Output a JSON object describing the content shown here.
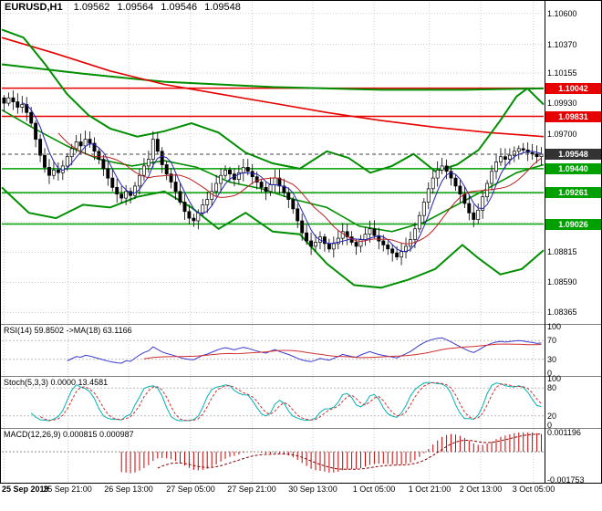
{
  "header": {
    "symbol": "EURUSD,H1",
    "open": "1.09562",
    "high": "1.09564",
    "low": "1.09546",
    "close": "1.09548"
  },
  "colors": {
    "background": "#ffffff",
    "candle_up": "#ffffff",
    "candle_down": "#000000",
    "candle_outline": "#000000",
    "band_green": "#008f00",
    "level_green": "#00a000",
    "level_red": "#e60000",
    "ma_red": "#e60000",
    "ma_green": "#008f00",
    "ma_fast_blue": "#2222bb",
    "ma_slow_red": "#bb2222",
    "rsi_line": "#3a3ad0",
    "rsi_ma": "#d03030",
    "stoch_k": "#00b3b3",
    "stoch_d": "#d03030",
    "macd": "#cc0000",
    "macd_signal": "#880000",
    "grid": "#cfcfcf",
    "current_badge": "#333333"
  },
  "price_axis": {
    "labels": [
      {
        "p": 1.106,
        "text": "1.10600"
      },
      {
        "p": 1.1037,
        "text": "1.10370"
      },
      {
        "p": 1.10155,
        "text": "1.10155"
      },
      {
        "p": 1.0993,
        "text": "1.09930"
      },
      {
        "p": 1.097,
        "text": "1.09700"
      },
      {
        "p": 1.08815,
        "text": "1.08815"
      },
      {
        "p": 1.0859,
        "text": "1.08590"
      },
      {
        "p": 1.08365,
        "text": "1.08365"
      }
    ],
    "gridlines": [
      1.106,
      1.1037,
      1.10155,
      1.0993,
      1.097,
      1.09475,
      1.0925,
      1.0904,
      1.08815,
      1.0859,
      1.08365
    ],
    "badges": [
      {
        "p": 1.10042,
        "text": "1.10042",
        "type": "red"
      },
      {
        "p": 1.09831,
        "text": "1.09831",
        "type": "red"
      },
      {
        "p": 1.09548,
        "text": "1.09548",
        "type": "current"
      },
      {
        "p": 1.0944,
        "text": "1.09440",
        "type": "green"
      },
      {
        "p": 1.09261,
        "text": "1.09261",
        "type": "green"
      },
      {
        "p": 1.09026,
        "text": "1.09026",
        "type": "green"
      }
    ]
  },
  "panels": {
    "rsi": {
      "label": "RSI(14) 59.8502 ->MA(18) 63.1166",
      "range": [
        0,
        100
      ],
      "guides": [
        70,
        30
      ],
      "axis_labels": [
        {
          "v": 100,
          "text": "100"
        },
        {
          "v": 70,
          "text": "70"
        },
        {
          "v": 30,
          "text": "30"
        },
        {
          "v": 0,
          "text": "0"
        }
      ]
    },
    "stoch": {
      "label": "Stoch(5,3,3) 0.0000 13.4581",
      "range": [
        0,
        100
      ],
      "guides": [
        80,
        20
      ],
      "axis_labels": [
        {
          "v": 100,
          "text": "100"
        },
        {
          "v": 80,
          "text": "80"
        },
        {
          "v": 20,
          "text": "20"
        },
        {
          "v": 0,
          "text": "0"
        }
      ]
    },
    "macd": {
      "label": "MACD(12,26,9) 0.000815 0.000987",
      "range": [
        -0.001753,
        0.001196
      ],
      "guides": [
        0
      ],
      "axis_labels": [
        {
          "v": 0.001196,
          "text": "0.001196"
        },
        {
          "v": -0.001753,
          "text": "-0.001753"
        }
      ]
    }
  },
  "chart_data": {
    "type": "candlestick",
    "title": "EURUSD H1",
    "ylim": [
      1.083,
      1.1066
    ],
    "x_ticks": [
      {
        "x": 0.004,
        "label": "25 Sep 2019",
        "bold": true
      },
      {
        "x": 0.122,
        "label": "25 Sep 21:00"
      },
      {
        "x": 0.234,
        "label": "26 Sep 13:00"
      },
      {
        "x": 0.348,
        "label": "27 Sep 05:00"
      },
      {
        "x": 0.462,
        "label": "27 Sep 21:00"
      },
      {
        "x": 0.574,
        "label": "30 Sep 13:00"
      },
      {
        "x": 0.687,
        "label": "1 Oct 05:00"
      },
      {
        "x": 0.789,
        "label": "1 Oct 21:00"
      },
      {
        "x": 0.884,
        "label": "2 Oct 13:00"
      },
      {
        "x": 0.981,
        "label": "3 Oct 05:00"
      }
    ],
    "quote": {
      "open": 1.09562,
      "high": 1.09564,
      "low": 1.09546,
      "close": 1.09548
    },
    "closes": [
      1.0993,
      1.0997,
      1.0994,
      1.099,
      1.0992,
      1.0986,
      1.0978,
      1.0966,
      1.0954,
      1.0945,
      1.0939,
      1.0943,
      1.0941,
      1.0946,
      1.0953,
      1.0959,
      1.0964,
      1.0961,
      1.0966,
      1.0963,
      1.0957,
      1.0951,
      1.0944,
      1.0937,
      1.093,
      1.0925,
      1.0922,
      1.0927,
      1.0924,
      1.0931,
      1.0939,
      1.0946,
      1.0951,
      1.0966,
      1.0957,
      1.0947,
      1.094,
      1.0934,
      1.0927,
      1.0919,
      1.0912,
      1.0907,
      1.0905,
      1.0911,
      1.0917,
      1.0921,
      1.0927,
      1.0933,
      1.0939,
      1.0943,
      1.094,
      1.0936,
      1.0941,
      1.0945,
      1.0942,
      1.0938,
      1.0934,
      1.093,
      1.0927,
      1.0932,
      1.0937,
      1.0931,
      1.0926,
      1.0921,
      1.0914,
      1.0905,
      1.0896,
      1.089,
      1.0886,
      1.0889,
      1.0893,
      1.0888,
      1.0884,
      1.0888,
      1.0892,
      1.0897,
      1.0893,
      1.0889,
      1.0886,
      1.0891,
      1.0895,
      1.0899,
      1.0894,
      1.089,
      1.0887,
      1.0884,
      1.0881,
      1.0878,
      1.0882,
      1.0886,
      1.0891,
      1.0899,
      1.0909,
      1.0919,
      1.0929,
      1.0937,
      1.0943,
      1.0946,
      1.0942,
      1.0937,
      1.0931,
      1.0925,
      1.0918,
      1.0911,
      1.0906,
      1.0913,
      1.0923,
      1.0933,
      1.0942,
      1.0949,
      1.0953,
      1.0951,
      1.0954,
      1.0957,
      1.0959,
      1.0958,
      1.0956,
      1.0955,
      1.0953,
      1.09548
    ],
    "levels": {
      "red": [
        1.10042,
        1.09831
      ],
      "green": [
        1.0944,
        1.09261,
        1.09026
      ],
      "current": 1.09548
    },
    "overlays": {
      "bollinger_upper": [
        [
          0,
          1.1048
        ],
        [
          0.04,
          1.1042
        ],
        [
          0.08,
          1.1022
        ],
        [
          0.12,
          1.1
        ],
        [
          0.16,
          1.0984
        ],
        [
          0.2,
          1.0974
        ],
        [
          0.25,
          1.0968
        ],
        [
          0.3,
          1.0972
        ],
        [
          0.35,
          1.0978
        ],
        [
          0.4,
          1.0971
        ],
        [
          0.45,
          1.0956
        ],
        [
          0.5,
          1.0948
        ],
        [
          0.55,
          1.0944
        ],
        [
          0.6,
          1.0957
        ],
        [
          0.64,
          1.0952
        ],
        [
          0.68,
          1.0941
        ],
        [
          0.72,
          1.0946
        ],
        [
          0.76,
          1.0955
        ],
        [
          0.8,
          1.0942
        ],
        [
          0.84,
          1.0947
        ],
        [
          0.88,
          1.0958
        ],
        [
          0.92,
          1.098
        ],
        [
          0.95,
          1.0998
        ],
        [
          0.97,
          1.1004
        ],
        [
          1,
          1.0992
        ]
      ],
      "bollinger_middle": [
        [
          0,
          1.0988
        ],
        [
          0.06,
          1.0974
        ],
        [
          0.12,
          1.0961
        ],
        [
          0.18,
          1.0951
        ],
        [
          0.24,
          1.0946
        ],
        [
          0.3,
          1.095
        ],
        [
          0.36,
          1.0945
        ],
        [
          0.42,
          1.0934
        ],
        [
          0.48,
          1.0929
        ],
        [
          0.54,
          1.0921
        ],
        [
          0.6,
          1.0915
        ],
        [
          0.66,
          1.0901
        ],
        [
          0.72,
          1.0897
        ],
        [
          0.78,
          1.0904
        ],
        [
          0.84,
          1.0917
        ],
        [
          0.9,
          1.093
        ],
        [
          0.95,
          1.0941
        ],
        [
          1,
          1.0947
        ]
      ],
      "bollinger_lower": [
        [
          0,
          1.093
        ],
        [
          0.05,
          1.0911
        ],
        [
          0.1,
          1.0907
        ],
        [
          0.15,
          1.0917
        ],
        [
          0.2,
          1.0915
        ],
        [
          0.25,
          1.0923
        ],
        [
          0.3,
          1.0927
        ],
        [
          0.35,
          1.0915
        ],
        [
          0.4,
          1.0899
        ],
        [
          0.45,
          1.0911
        ],
        [
          0.5,
          1.0897
        ],
        [
          0.55,
          1.0895
        ],
        [
          0.6,
          1.0873
        ],
        [
          0.65,
          1.0857
        ],
        [
          0.7,
          1.0855
        ],
        [
          0.75,
          1.0861
        ],
        [
          0.8,
          1.0869
        ],
        [
          0.85,
          1.0887
        ],
        [
          0.88,
          1.0877
        ],
        [
          0.92,
          1.0865
        ],
        [
          0.96,
          1.0869
        ],
        [
          1,
          1.0883
        ]
      ],
      "ma_long_red": [
        [
          0,
          1.1042
        ],
        [
          0.1,
          1.103
        ],
        [
          0.2,
          1.1017
        ],
        [
          0.3,
          1.1007
        ],
        [
          0.4,
          1.1
        ],
        [
          0.5,
          1.0993
        ],
        [
          0.6,
          1.0986
        ],
        [
          0.7,
          1.098
        ],
        [
          0.8,
          1.0975
        ],
        [
          0.9,
          1.0971
        ],
        [
          1,
          1.0968
        ]
      ],
      "ma_flat_green": [
        [
          0,
          1.1022
        ],
        [
          0.15,
          1.1015
        ],
        [
          0.3,
          1.1009
        ],
        [
          0.5,
          1.1005
        ],
        [
          0.7,
          1.1003
        ],
        [
          0.85,
          1.1003
        ],
        [
          1,
          1.1004
        ]
      ]
    },
    "indicators": {
      "rsi_period": 14,
      "rsi_last": 59.8502,
      "rsi_ma_period": 18,
      "rsi_ma_last": 63.1166,
      "stoch_params": [
        5,
        3,
        3
      ],
      "stoch_last": 0.0,
      "stoch_signal_last": 13.4581,
      "macd_params": [
        12,
        26,
        9
      ],
      "macd_last": 0.000815,
      "macd_signal_last": 0.000987
    }
  }
}
